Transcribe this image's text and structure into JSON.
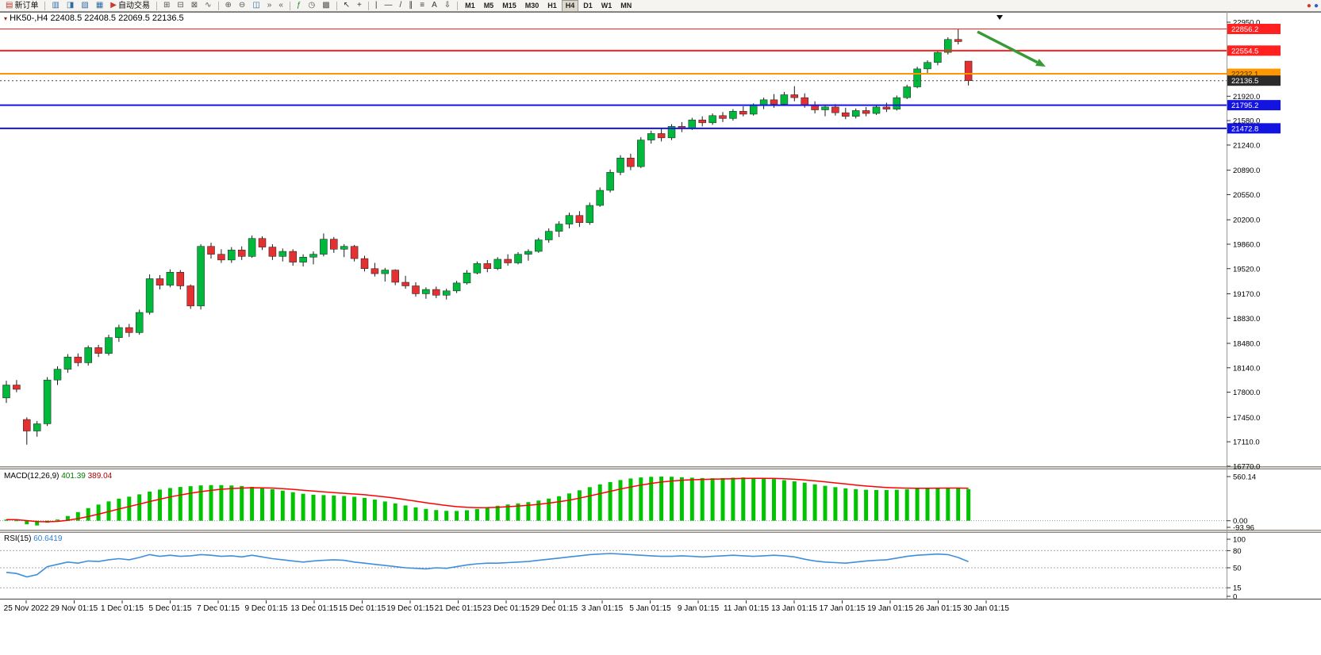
{
  "toolbar": {
    "items": [
      {
        "name": "new-order",
        "glyph": "▤",
        "color": "#b23b2e",
        "label": "新订单"
      },
      {
        "sep": true
      },
      {
        "name": "market-watch",
        "glyph": "▥",
        "color": "#2e6da4"
      },
      {
        "name": "data-window",
        "glyph": "◨",
        "color": "#2e6da4"
      },
      {
        "name": "navigator",
        "glyph": "▧",
        "color": "#2e6da4"
      },
      {
        "name": "terminal",
        "glyph": "▦",
        "color": "#2e6da4"
      },
      {
        "name": "auto-trading",
        "glyph": "▶",
        "color": "#cc372b",
        "label": "自动交易"
      },
      {
        "sep": true
      },
      {
        "name": "new-chart",
        "glyph": "⊞",
        "color": "#555555"
      },
      {
        "name": "bar-chart",
        "glyph": "⊟",
        "color": "#555555"
      },
      {
        "name": "candle-chart",
        "glyph": "⊠",
        "color": "#555555"
      },
      {
        "name": "line-chart",
        "glyph": "∿",
        "color": "#555555"
      },
      {
        "sep": true
      },
      {
        "name": "zoom-in",
        "glyph": "⊕",
        "color": "#555555"
      },
      {
        "name": "zoom-out",
        "glyph": "⊖",
        "color": "#555555"
      },
      {
        "name": "tile-windows",
        "glyph": "◫",
        "color": "#2e6da4"
      },
      {
        "name": "auto-scroll",
        "glyph": "»",
        "color": "#555555"
      },
      {
        "name": "chart-shift",
        "glyph": "«",
        "color": "#555555"
      },
      {
        "sep": true
      },
      {
        "name": "indicators",
        "glyph": "ƒ",
        "color": "#1f8c1f"
      },
      {
        "name": "periods",
        "glyph": "◷",
        "color": "#555555"
      },
      {
        "name": "templates",
        "glyph": "▩",
        "color": "#555555"
      },
      {
        "sep": true
      },
      {
        "name": "cursor",
        "glyph": "↖",
        "color": "#333333"
      },
      {
        "name": "crosshair",
        "glyph": "+",
        "color": "#333333"
      },
      {
        "sep": true
      },
      {
        "name": "vertical-line",
        "glyph": "|",
        "color": "#333333"
      },
      {
        "name": "horizontal-line",
        "glyph": "—",
        "color": "#333333"
      },
      {
        "name": "trendline",
        "glyph": "/",
        "color": "#333333"
      },
      {
        "name": "channel",
        "glyph": "∥",
        "color": "#333333"
      },
      {
        "name": "fibonacci",
        "glyph": "≡",
        "color": "#333333"
      },
      {
        "name": "text-label",
        "glyph": "A",
        "color": "#333333"
      },
      {
        "name": "arrows",
        "glyph": "⇩",
        "color": "#333333"
      },
      {
        "sep": true
      }
    ],
    "timeframes": [
      "M1",
      "M5",
      "M15",
      "M30",
      "H1",
      "H4",
      "D1",
      "W1",
      "MN"
    ],
    "active_timeframe": "H4",
    "right_icons": [
      {
        "name": "news",
        "glyph": "●",
        "color": "#d03a2e"
      },
      {
        "name": "connection",
        "glyph": "●",
        "color": "#2e5fd0"
      }
    ]
  },
  "chart": {
    "title_symbol": "HK50-,H4",
    "title_ohlc": "22408.5 22408.5 22069.5 22136.5",
    "macd_label": "MACD(12,26,9)",
    "macd_value": "401.39",
    "macd_signal": "389.04",
    "rsi_label": "RSI(15)",
    "rsi_value": "60.6419"
  },
  "chart_data": [
    {
      "type": "candlestick",
      "symbol": "HK50-",
      "period": "H4",
      "ohlc_current": {
        "open": 22408.5,
        "high": 22408.5,
        "low": 22069.5,
        "close": 22136.5
      },
      "y_min": 16770.0,
      "y_max": 22950.0,
      "y_ticks": [
        22950.0,
        21920.0,
        21580.0,
        21240.0,
        20890.0,
        20550.0,
        20200.0,
        19860.0,
        19520.0,
        19170.0,
        18830.0,
        18480.0,
        18140.0,
        17800.0,
        17450.0,
        17110.0,
        16770.0
      ],
      "x_labels": [
        "25 Nov 2022",
        "29 Nov 01:15",
        "1 Dec 01:15",
        "5 Dec 01:15",
        "7 Dec 01:15",
        "9 Dec 01:15",
        "13 Dec 01:15",
        "15 Dec 01:15",
        "19 Dec 01:15",
        "21 Dec 01:15",
        "23 Dec 01:15",
        "29 Dec 01:15",
        "3 Jan 01:15",
        "5 Jan 01:15",
        "9 Jan 01:15",
        "11 Jan 01:15",
        "13 Jan 01:15",
        "17 Jan 01:15",
        "19 Jan 01:15",
        "26 Jan 01:15",
        "30 Jan 01:15"
      ],
      "bull_color": "#00B93C",
      "bear_color": "#E33030",
      "candles": [
        [
          17720,
          17960,
          17650,
          17900
        ],
        [
          17900,
          17970,
          17800,
          17840
        ],
        [
          17420,
          17450,
          17070,
          17260
        ],
        [
          17260,
          17400,
          17180,
          17360
        ],
        [
          17360,
          18010,
          17330,
          17970
        ],
        [
          17970,
          18160,
          17900,
          18120
        ],
        [
          18120,
          18330,
          18070,
          18290
        ],
        [
          18290,
          18340,
          18160,
          18210
        ],
        [
          18210,
          18450,
          18170,
          18420
        ],
        [
          18420,
          18460,
          18290,
          18340
        ],
        [
          18340,
          18600,
          18310,
          18560
        ],
        [
          18560,
          18740,
          18500,
          18700
        ],
        [
          18700,
          18750,
          18570,
          18630
        ],
        [
          18630,
          18950,
          18600,
          18910
        ],
        [
          18910,
          19440,
          18880,
          19380
        ],
        [
          19380,
          19430,
          19230,
          19290
        ],
        [
          19290,
          19510,
          19260,
          19470
        ],
        [
          19470,
          19500,
          19230,
          19280
        ],
        [
          19280,
          19300,
          18960,
          19000
        ],
        [
          19000,
          19860,
          18950,
          19830
        ],
        [
          19830,
          19880,
          19660,
          19720
        ],
        [
          19720,
          19790,
          19600,
          19640
        ],
        [
          19640,
          19820,
          19600,
          19780
        ],
        [
          19780,
          19830,
          19640,
          19690
        ],
        [
          19690,
          19980,
          19670,
          19940
        ],
        [
          19940,
          19970,
          19780,
          19820
        ],
        [
          19820,
          19860,
          19640,
          19690
        ],
        [
          19690,
          19800,
          19620,
          19760
        ],
        [
          19760,
          19790,
          19560,
          19610
        ],
        [
          19610,
          19720,
          19550,
          19680
        ],
        [
          19680,
          19760,
          19580,
          19720
        ],
        [
          19720,
          20010,
          19690,
          19930
        ],
        [
          19930,
          19960,
          19740,
          19790
        ],
        [
          19790,
          19860,
          19680,
          19830
        ],
        [
          19830,
          19850,
          19620,
          19660
        ],
        [
          19660,
          19700,
          19480,
          19520
        ],
        [
          19520,
          19600,
          19410,
          19450
        ],
        [
          19450,
          19530,
          19340,
          19500
        ],
        [
          19500,
          19510,
          19290,
          19330
        ],
        [
          19330,
          19420,
          19240,
          19280
        ],
        [
          19280,
          19330,
          19130,
          19170
        ],
        [
          19170,
          19260,
          19100,
          19230
        ],
        [
          19230,
          19270,
          19110,
          19150
        ],
        [
          19150,
          19240,
          19090,
          19210
        ],
        [
          19210,
          19350,
          19180,
          19320
        ],
        [
          19320,
          19500,
          19300,
          19460
        ],
        [
          19460,
          19620,
          19440,
          19590
        ],
        [
          19590,
          19640,
          19470,
          19520
        ],
        [
          19520,
          19680,
          19500,
          19650
        ],
        [
          19650,
          19720,
          19560,
          19600
        ],
        [
          19600,
          19750,
          19580,
          19720
        ],
        [
          19720,
          19790,
          19630,
          19760
        ],
        [
          19760,
          19950,
          19740,
          19920
        ],
        [
          19920,
          20080,
          19880,
          20040
        ],
        [
          20040,
          20180,
          19960,
          20140
        ],
        [
          20140,
          20300,
          20080,
          20260
        ],
        [
          20260,
          20320,
          20100,
          20160
        ],
        [
          20160,
          20440,
          20130,
          20400
        ],
        [
          20400,
          20650,
          20380,
          20610
        ],
        [
          20610,
          20900,
          20580,
          20860
        ],
        [
          20860,
          21100,
          20820,
          21060
        ],
        [
          21060,
          21120,
          20890,
          20940
        ],
        [
          20940,
          21350,
          20920,
          21310
        ],
        [
          21310,
          21440,
          21260,
          21400
        ],
        [
          21400,
          21470,
          21290,
          21340
        ],
        [
          21340,
          21530,
          21310,
          21500
        ],
        [
          21500,
          21560,
          21420,
          21470
        ],
        [
          21470,
          21620,
          21450,
          21590
        ],
        [
          21590,
          21640,
          21500,
          21550
        ],
        [
          21550,
          21680,
          21520,
          21650
        ],
        [
          21650,
          21700,
          21560,
          21610
        ],
        [
          21610,
          21740,
          21580,
          21710
        ],
        [
          21710,
          21780,
          21640,
          21670
        ],
        [
          21670,
          21820,
          21650,
          21790
        ],
        [
          21790,
          21900,
          21740,
          21870
        ],
        [
          21870,
          21950,
          21760,
          21810
        ],
        [
          21810,
          21980,
          21790,
          21940
        ],
        [
          21940,
          22060,
          21850,
          21900
        ],
        [
          21900,
          21960,
          21760,
          21800
        ],
        [
          21800,
          21850,
          21680,
          21730
        ],
        [
          21730,
          21800,
          21640,
          21770
        ],
        [
          21770,
          21810,
          21650,
          21690
        ],
        [
          21690,
          21760,
          21600,
          21640
        ],
        [
          21640,
          21750,
          21610,
          21720
        ],
        [
          21720,
          21770,
          21640,
          21680
        ],
        [
          21680,
          21800,
          21660,
          21770
        ],
        [
          21770,
          21830,
          21700,
          21740
        ],
        [
          21740,
          21930,
          21720,
          21900
        ],
        [
          21900,
          22080,
          21880,
          22050
        ],
        [
          22050,
          22330,
          22030,
          22300
        ],
        [
          22300,
          22420,
          22240,
          22390
        ],
        [
          22390,
          22560,
          22350,
          22530
        ],
        [
          22530,
          22740,
          22500,
          22710
        ],
        [
          22710,
          22856,
          22640,
          22680
        ],
        [
          22408.5,
          22408.5,
          22069.5,
          22136.5
        ]
      ],
      "lines": [
        {
          "price": 22856.2,
          "color": "#FF2020",
          "width": 1,
          "label": "22856.2",
          "text": "#ffffff"
        },
        {
          "price": 22554.5,
          "color": "#FF2020",
          "width": 2,
          "label": "22554.5",
          "text": "#ffffff"
        },
        {
          "price": 22232.1,
          "color": "#FF9800",
          "width": 2,
          "label": "22232.1",
          "text": "#4a3000"
        },
        {
          "price": 22136.5,
          "color": "#444444",
          "width": 1,
          "dash": "2,3",
          "badge": "#2b2b2b",
          "label": "22136.5",
          "text": "#ffffff"
        },
        {
          "price": 21795.2,
          "color": "#1414E0",
          "width": 2,
          "label": "21795.2",
          "text": "#ffffff"
        },
        {
          "price": 21472.8,
          "color": "#1414E0",
          "width": 2,
          "label": "21472.8",
          "text": "#ffffff"
        }
      ],
      "annotations": {
        "arrow": {
          "from": [
            1232,
            25
          ],
          "to": [
            1318,
            69
          ],
          "color": "#379a37"
        },
        "marker_pos": [
          1260,
          4
        ]
      }
    },
    {
      "type": "bar",
      "name": "MACD",
      "params": "(12,26,9)",
      "current": 401.39,
      "signal_current": 389.04,
      "axis_labels": [
        560.14,
        0.0,
        -93.96
      ],
      "y_min": -93.96,
      "y_max": 560.14,
      "bar_color": "#00C400",
      "signal_color": "#FF0000",
      "values": [
        15,
        5,
        -45,
        -60,
        -25,
        15,
        60,
        110,
        160,
        205,
        245,
        280,
        305,
        335,
        370,
        395,
        415,
        428,
        438,
        448,
        452,
        452,
        447,
        440,
        430,
        416,
        400,
        382,
        362,
        342,
        330,
        325,
        320,
        314,
        304,
        290,
        268,
        244,
        219,
        194,
        170,
        150,
        135,
        125,
        124,
        133,
        149,
        169,
        190,
        206,
        220,
        236,
        256,
        281,
        311,
        346,
        386,
        426,
        461,
        491,
        516,
        536,
        549,
        557,
        560,
        558,
        552,
        546,
        541,
        539,
        541,
        546,
        549,
        546,
        539,
        528,
        515,
        500,
        482,
        462,
        443,
        426,
        411,
        400,
        393,
        390,
        390,
        393,
        398,
        405,
        412,
        418,
        420,
        414,
        401.39
      ]
    },
    {
      "type": "line",
      "name": "RSI",
      "params": "(15)",
      "current": 60.6419,
      "levels": [
        80,
        50,
        15
      ],
      "axis_labels": [
        100,
        80,
        50,
        15,
        0
      ],
      "y_min": 0,
      "y_max": 100,
      "line_color": "#3E8EDE",
      "values": [
        42,
        40,
        34,
        38,
        52,
        56,
        60,
        58,
        62,
        61,
        64,
        66,
        64,
        68,
        73,
        70,
        72,
        70,
        71,
        73,
        72,
        70,
        71,
        69,
        72,
        69,
        66,
        64,
        62,
        60,
        62,
        63,
        64,
        63,
        60,
        58,
        56,
        54,
        52,
        50,
        49,
        48,
        50,
        49,
        52,
        55,
        57,
        58,
        58,
        59,
        60,
        61,
        63,
        65,
        67,
        69,
        71,
        73,
        74,
        75,
        74,
        73,
        72,
        71,
        70,
        70,
        71,
        70,
        69,
        70,
        71,
        72,
        71,
        70,
        71,
        72,
        71,
        69,
        65,
        62,
        60,
        59,
        58,
        60,
        62,
        63,
        64,
        67,
        70,
        72,
        73,
        74,
        73,
        68,
        60.64
      ]
    }
  ]
}
